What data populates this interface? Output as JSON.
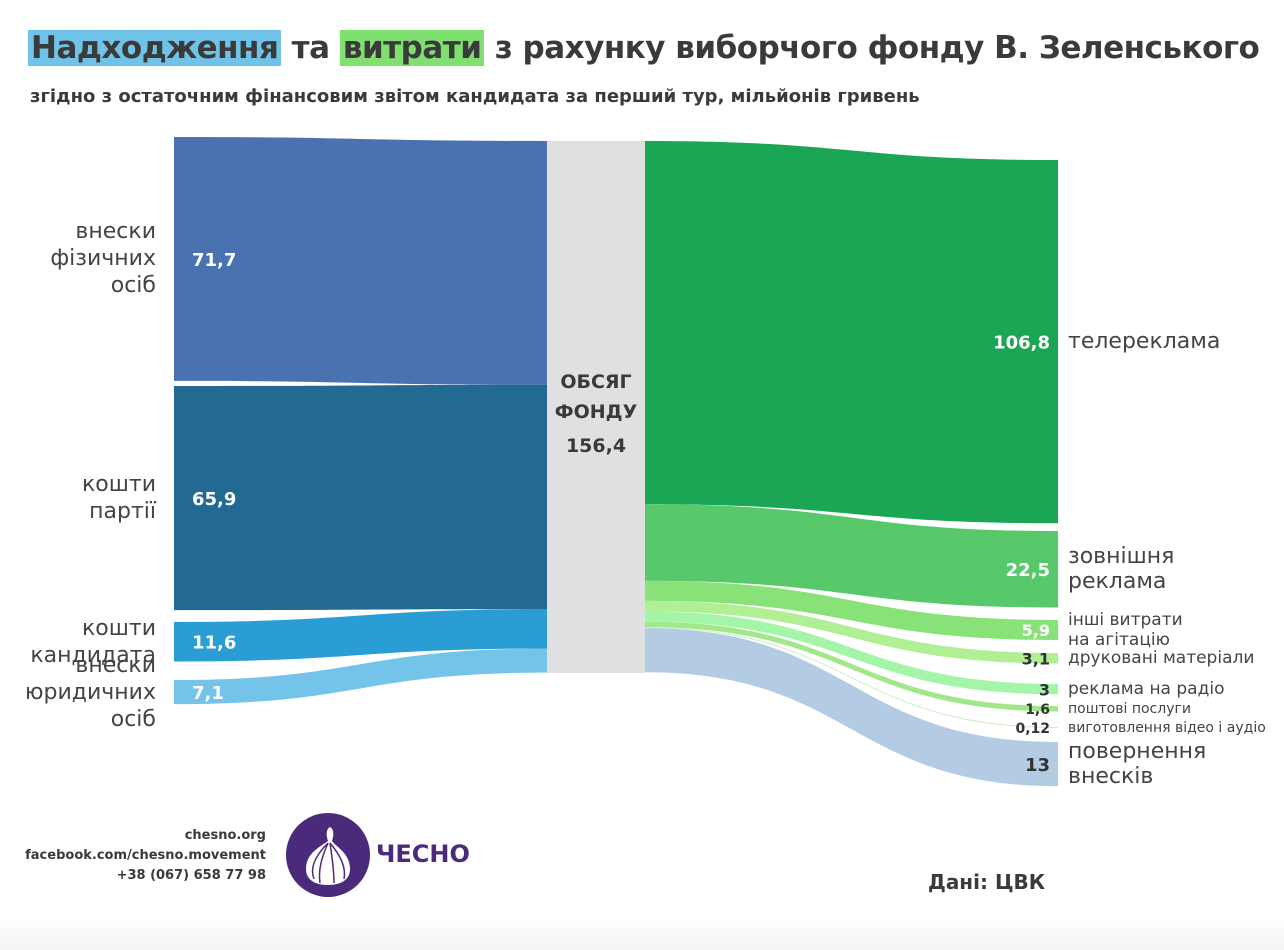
{
  "title": {
    "part1": "Надходження",
    "part2": " та ",
    "part3": "витрати",
    "part4": " з рахунку виборчого фонду В. Зеленського"
  },
  "subtitle": "згідно з остаточним фінансовим звітом кандидата за перший тур, мільйонів гривень",
  "center": {
    "line1": "ОБСЯГ",
    "line2": "ФОНДУ",
    "value": "156,4"
  },
  "footer": {
    "site": "chesno.org",
    "facebook": "facebook.com/chesno.movement",
    "phone": "+38 (067) 658 77 98",
    "logo_text": "ЧЕСНО",
    "source": "Дані: ЦВК"
  },
  "chart_data": {
    "type": "sankey",
    "title": "Надходження та витрати з рахунку виборчого фонду В. Зеленського",
    "subtitle": "згідно з остаточним фінансовим звітом кандидата за перший тур, мільйонів гривень",
    "units": "млн грн",
    "total": {
      "label": "ОБСЯГ ФОНДУ",
      "value": 156.4,
      "display": "156,4",
      "color": "#e0e0e0"
    },
    "inflows": [
      {
        "label": [
          "внески",
          "фізичних",
          "осіб"
        ],
        "value": 71.7,
        "display": "71,7",
        "color": "#4a72b0"
      },
      {
        "label": [
          "кошти",
          "партії"
        ],
        "value": 65.9,
        "display": "65,9",
        "color": "#236a93"
      },
      {
        "label": [
          "кошти",
          "кандидата"
        ],
        "value": 11.6,
        "display": "11,6",
        "color": "#2a9dd4"
      },
      {
        "label": [
          "внески",
          "юридичних",
          "осіб"
        ],
        "value": 7.1,
        "display": "7,1",
        "color": "#74c4ea"
      }
    ],
    "outflows": [
      {
        "label": [
          "телереклама"
        ],
        "value": 106.8,
        "display": "106,8",
        "color": "#1aa655",
        "value_color": "#ffffff",
        "size": "large"
      },
      {
        "label": [
          "зовнішня",
          "реклама"
        ],
        "value": 22.5,
        "display": "22,5",
        "color": "#58c96a",
        "value_color": "#ffffff",
        "size": "large"
      },
      {
        "label": [
          "інші витрати",
          "на агітацію"
        ],
        "value": 5.9,
        "display": "5,9",
        "color": "#88e277",
        "value_color": "#ffffff",
        "size": "small"
      },
      {
        "label": [
          "друковані матеріали"
        ],
        "value": 3.1,
        "display": "3,1",
        "color": "#b1ef95",
        "value_color": "#333333",
        "size": "small"
      },
      {
        "label": [
          "реклама на радіо"
        ],
        "value": 3,
        "display": "3",
        "color": "#a5f5a8",
        "value_color": "#333333",
        "size": "small"
      },
      {
        "label": [
          "поштові послуги"
        ],
        "value": 1.6,
        "display": "1,6",
        "color": "#a2e88a",
        "value_color": "#333333",
        "size": "tiny"
      },
      {
        "label": [
          "виготовлення відео і аудіо"
        ],
        "value": 0.12,
        "display": "0,12",
        "color": "#c8efc0",
        "value_color": "#333333",
        "size": "tiny"
      },
      {
        "label": [
          "повернення",
          "внесків"
        ],
        "value": 13,
        "display": "13",
        "color": "#b3cce3",
        "value_color": "#333333",
        "size": "large"
      }
    ]
  }
}
